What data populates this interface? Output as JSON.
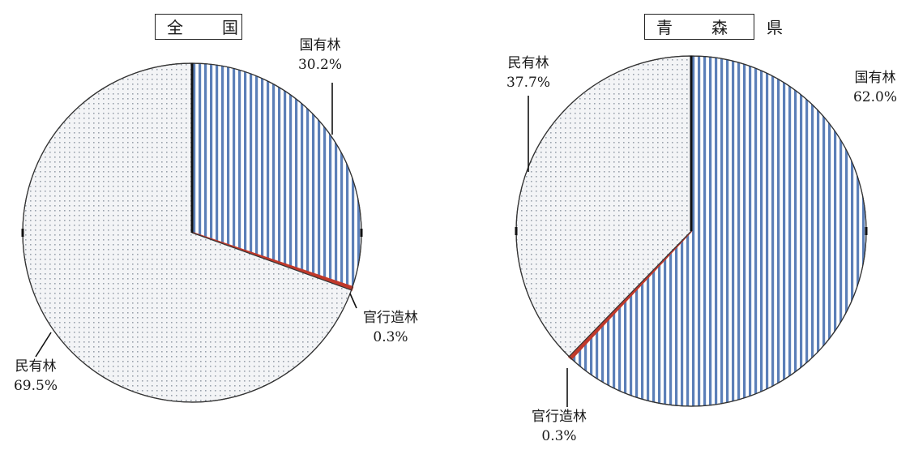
{
  "chart_data": [
    {
      "type": "pie",
      "title": "全　国",
      "categories": [
        "国有林",
        "官行造林",
        "民有林"
      ],
      "values": [
        30.2,
        0.3,
        69.5
      ],
      "value_labels": [
        "30.2%",
        "0.3%",
        "69.5%"
      ],
      "colors": {
        "国有林": "#5b7fb8",
        "官行造林": "#c0392b",
        "民有林": "#d8dfe6"
      }
    },
    {
      "type": "pie",
      "title": "青　森　県",
      "categories": [
        "国有林",
        "官行造林",
        "民有林"
      ],
      "values": [
        62.0,
        0.3,
        37.7
      ],
      "value_labels": [
        "62.0%",
        "0.3%",
        "37.7%"
      ],
      "colors": {
        "国有林": "#5b7fb8",
        "官行造林": "#c0392b",
        "民有林": "#d8dfe6"
      }
    }
  ]
}
